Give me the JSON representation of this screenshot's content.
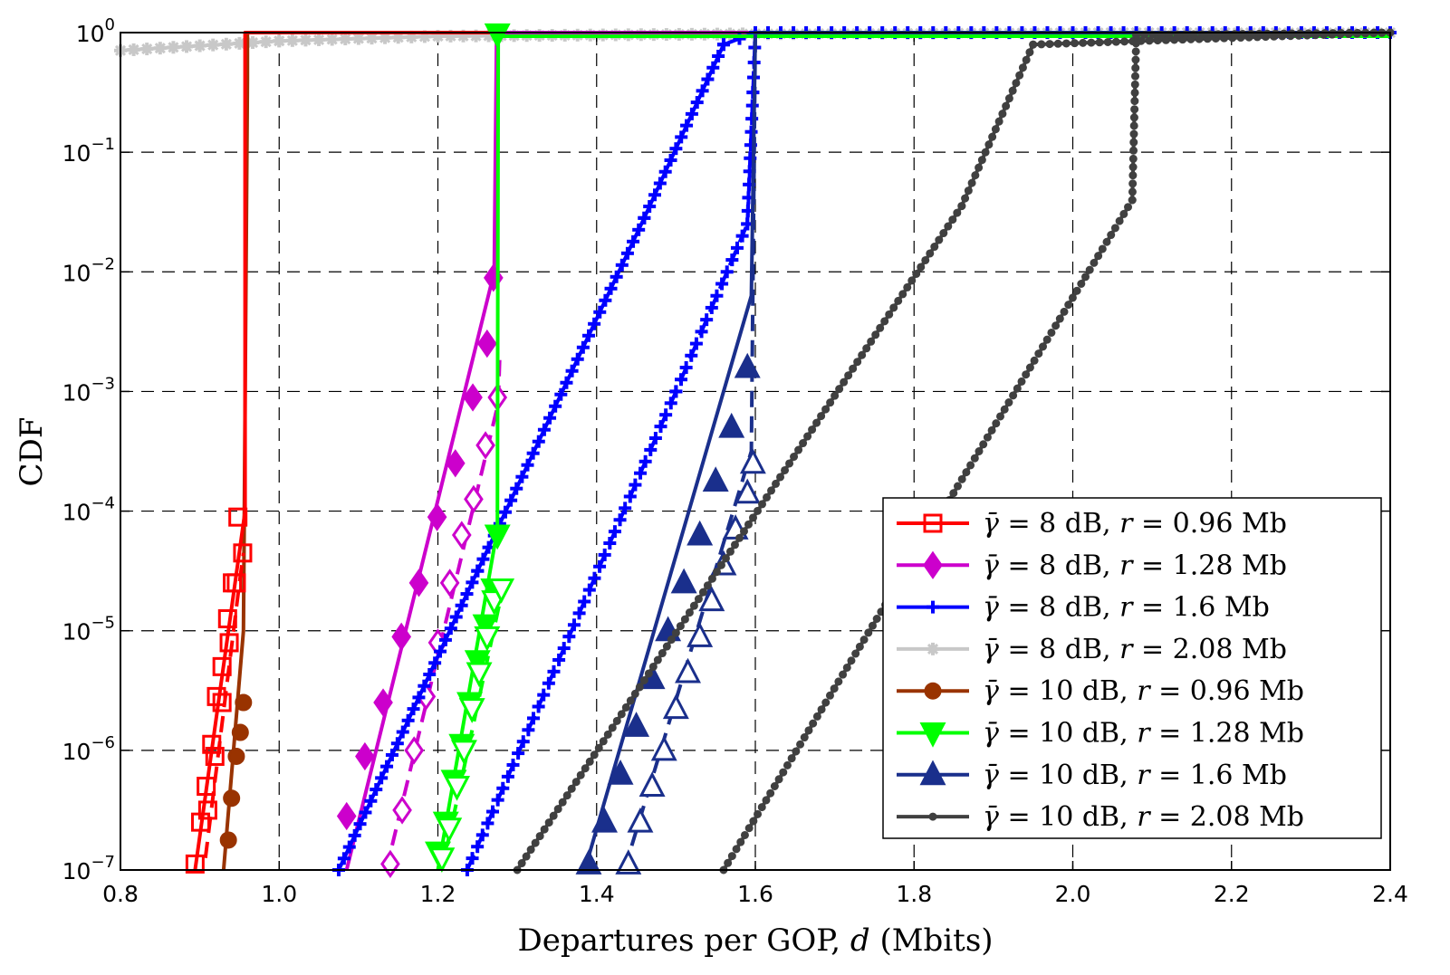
{
  "chart_data": {
    "type": "line",
    "xlabel_prefix": "Departures per GOP, ",
    "xlabel_var": "d",
    "xlabel_suffix": " (Mbits)",
    "ylabel": "CDF",
    "xscale": "linear",
    "yscale": "log",
    "xlim": [
      0.8,
      2.4
    ],
    "ylim_exponents": [
      -7,
      0
    ],
    "x_ticks": [
      "0.8",
      "1.0",
      "1.2",
      "1.4",
      "1.6",
      "1.8",
      "2.0",
      "2.2",
      "2.4"
    ],
    "y_ticks": [
      {
        "base": "10",
        "exp": "0"
      },
      {
        "base": "10",
        "exp": "−1"
      },
      {
        "base": "10",
        "exp": "−2"
      },
      {
        "base": "10",
        "exp": "−3"
      },
      {
        "base": "10",
        "exp": "−4"
      },
      {
        "base": "10",
        "exp": "−5"
      },
      {
        "base": "10",
        "exp": "−6"
      },
      {
        "base": "10",
        "exp": "−7"
      }
    ],
    "grid": true,
    "legend_position": "bottom-right",
    "series": [
      {
        "name": "γ̄ = 8 dB, r = 0.96 Mb",
        "label_parts": {
          "snr": "8 dB",
          "rate": "0.96 Mb"
        },
        "color": "#ff0000",
        "marker": "square",
        "lines": [
          {
            "style": "solid",
            "x": [
              0.894,
              0.957,
              0.957,
              2.4
            ],
            "log10y": [
              -7,
              -4.0,
              0,
              0
            ]
          },
          {
            "style": "dashed",
            "x": [
              0.907,
              0.95,
              0.955
            ],
            "log10y": [
              -6.9,
              -4.6,
              -4.35
            ]
          }
        ],
        "markers": [
          {
            "line": 0,
            "x": [
              0.894,
              0.901,
              0.908,
              0.915,
              0.921,
              0.928,
              0.935,
              0.941,
              0.948
            ],
            "log10y": [
              -6.95,
              -6.6,
              -6.3,
              -5.95,
              -5.55,
              -5.3,
              -4.9,
              -4.6,
              -4.05
            ]
          },
          {
            "line": 1,
            "x": [
              0.91,
              0.919,
              0.928,
              0.937,
              0.946,
              0.954
            ],
            "log10y": [
              -6.5,
              -6.05,
              -5.6,
              -5.1,
              -4.6,
              -4.35
            ]
          }
        ]
      },
      {
        "name": "γ̄ = 8 dB, r = 1.28 Mb",
        "label_parts": {
          "snr": "8 dB",
          "rate": "1.28 Mb"
        },
        "color": "#cc00cc",
        "marker": "diamond",
        "lines": [
          {
            "style": "solid",
            "x": [
              1.085,
              1.271,
              1.274,
              2.4
            ],
            "log10y": [
              -7,
              -2.0,
              0,
              0
            ]
          },
          {
            "style": "dashed",
            "x": [
              1.135,
              1.276,
              1.278
            ],
            "log10y": [
              -7,
              -3.1,
              -2.7
            ]
          }
        ],
        "markers": [
          {
            "line": 0,
            "x": [
              1.085,
              1.108,
              1.131,
              1.154,
              1.176,
              1.199,
              1.222,
              1.244,
              1.262,
              1.27
            ],
            "log10y": [
              -6.55,
              -6.05,
              -5.6,
              -5.05,
              -4.6,
              -4.05,
              -3.6,
              -3.05,
              -2.6,
              -2.05
            ]
          },
          {
            "line": 1,
            "x": [
              1.14,
              1.155,
              1.17,
              1.185,
              1.2,
              1.215,
              1.23,
              1.245,
              1.26,
              1.275
            ],
            "log10y": [
              -6.95,
              -6.5,
              -6.0,
              -5.55,
              -5.1,
              -4.6,
              -4.2,
              -3.9,
              -3.45,
              -3.05
            ]
          }
        ]
      },
      {
        "name": "γ̄ = 8 dB, r = 1.6 Mb",
        "label_parts": {
          "snr": "8 dB",
          "rate": "1.6 Mb"
        },
        "color": "#0000ff",
        "marker": "plus",
        "lines": [
          {
            "style": "solid",
            "x": [
              1.075,
              1.25,
              1.46,
              1.56,
              1.6,
              1.6,
              2.4
            ],
            "log10y": [
              -7,
              -4.5,
              -1.55,
              -0.1,
              0,
              0,
              0
            ]
          },
          {
            "style": "dashed",
            "x": [
              1.237,
              1.5,
              1.59,
              1.597,
              1.6
            ],
            "log10y": [
              -7,
              -3.0,
              -1.6,
              -0.5,
              0
            ]
          }
        ],
        "markers": []
      },
      {
        "name": "γ̄ = 8 dB, r = 2.08 Mb",
        "label_parts": {
          "snr": "8 dB",
          "rate": "2.08 Mb"
        },
        "color": "#c8c8c8",
        "marker": "asterisk",
        "lines": [
          {
            "style": "solid",
            "x": [
              0.8,
              1.0,
              1.2,
              1.6,
              2.08,
              2.4
            ],
            "log10y": [
              -0.15,
              -0.07,
              -0.03,
              -0.01,
              0,
              0
            ]
          }
        ],
        "markers": []
      },
      {
        "name": "γ̄ = 10 dB, r = 0.96 Mb",
        "label_parts": {
          "snr": "10 dB",
          "rate": "0.96 Mb"
        },
        "color": "#993300",
        "marker": "circle",
        "lines": [
          {
            "style": "solid",
            "x": [
              0.93,
              0.955,
              0.96,
              0.96,
              2.4
            ],
            "log10y": [
              -7,
              -5.0,
              -0.4,
              0,
              0
            ]
          }
        ],
        "markers": [
          {
            "line": 0,
            "x": [
              0.936,
              0.94,
              0.946,
              0.951,
              0.955
            ],
            "log10y": [
              -6.75,
              -6.4,
              -6.05,
              -5.85,
              -5.6
            ]
          }
        ]
      },
      {
        "name": "γ̄ = 10 dB, r = 1.28 Mb",
        "label_parts": {
          "snr": "10 dB",
          "rate": "1.28 Mb"
        },
        "color": "#00ff00",
        "marker": "triangle-down",
        "lines": [
          {
            "style": "solid",
            "x": [
              1.2,
              1.275,
              1.276,
              2.4
            ],
            "log10y": [
              -7,
              -4.15,
              -0.03,
              -0.03
            ]
          },
          {
            "style": "dashed",
            "x": [
              1.205,
              1.28
            ],
            "log10y": [
              -7,
              -4.7
            ]
          }
        ],
        "markers": [
          {
            "line": 0,
            "x": [
              1.2,
              1.21,
              1.22,
              1.23,
              1.24,
              1.25,
              1.26,
              1.27,
              1.275,
              1.275
            ],
            "log10y": [
              -6.85,
              -6.6,
              -6.25,
              -5.95,
              -5.6,
              -5.25,
              -4.95,
              -4.65,
              -4.2,
              -0.01
            ]
          },
          {
            "line": 1,
            "x": [
              1.205,
              1.214,
              1.224,
              1.233,
              1.243,
              1.252,
              1.262,
              1.271,
              1.28
            ],
            "log10y": [
              -6.9,
              -6.65,
              -6.3,
              -6.0,
              -5.65,
              -5.35,
              -5.05,
              -4.75,
              -4.65
            ]
          }
        ]
      },
      {
        "name": "γ̄ = 10 dB, r = 1.6 Mb",
        "label_parts": {
          "snr": "10 dB",
          "rate": "1.6 Mb"
        },
        "color": "#1a2f8c",
        "marker": "triangle-up",
        "lines": [
          {
            "style": "solid",
            "x": [
              1.385,
              1.595,
              1.6,
              2.4
            ],
            "log10y": [
              -7,
              -2.2,
              0,
              0
            ]
          },
          {
            "style": "dashed",
            "x": [
              1.435,
              1.595,
              1.6
            ],
            "log10y": [
              -7,
              -3.5,
              0
            ]
          }
        ],
        "markers": [
          {
            "line": 0,
            "x": [
              1.39,
              1.41,
              1.43,
              1.45,
              1.47,
              1.49,
              1.51,
              1.53,
              1.55,
              1.57,
              1.59
            ],
            "log10y": [
              -6.95,
              -6.6,
              -6.2,
              -5.8,
              -5.4,
              -5.0,
              -4.6,
              -4.2,
              -3.75,
              -3.3,
              -2.8
            ]
          },
          {
            "line": 1,
            "x": [
              1.44,
              1.455,
              1.47,
              1.485,
              1.5,
              1.515,
              1.53,
              1.545,
              1.56,
              1.575,
              1.59,
              1.597
            ],
            "log10y": [
              -6.95,
              -6.6,
              -6.3,
              -6.0,
              -5.65,
              -5.35,
              -5.05,
              -4.75,
              -4.45,
              -4.15,
              -3.85,
              -3.6
            ]
          }
        ]
      },
      {
        "name": "γ̄ = 10 dB, r = 2.08 Mb",
        "label_parts": {
          "snr": "10 dB",
          "rate": "2.08 Mb"
        },
        "color": "#404040",
        "marker": "dot",
        "lines": [
          {
            "style": "solid",
            "x": [
              1.3,
              1.86,
              1.95,
              2.4
            ],
            "log10y": [
              -7,
              -1.45,
              -0.1,
              0
            ]
          },
          {
            "style": "dashed",
            "x": [
              1.56,
              2.075,
              2.08,
              2.4
            ],
            "log10y": [
              -7,
              -1.4,
              -0.02,
              0
            ]
          }
        ],
        "markers": []
      }
    ]
  }
}
